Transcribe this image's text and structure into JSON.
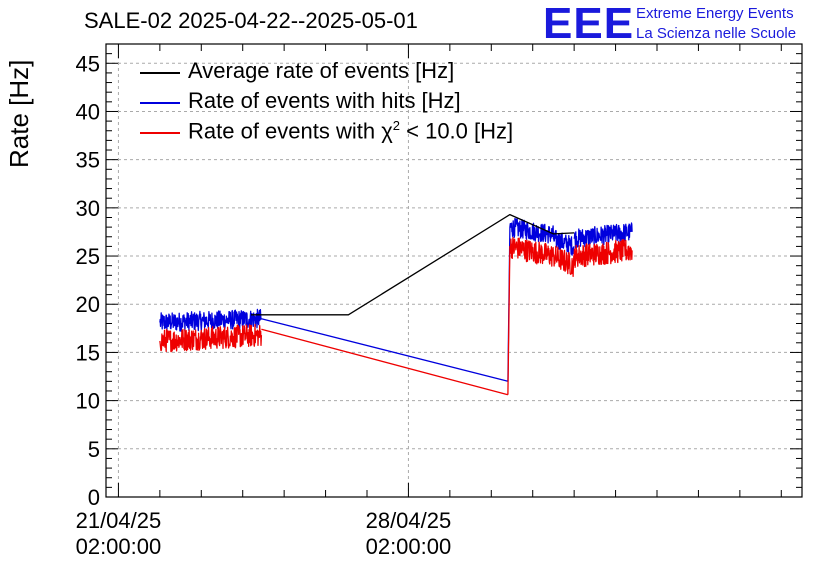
{
  "chart_data": {
    "type": "line",
    "title": "SALE-02 2025-04-22--2025-05-01",
    "ylabel": "Rate [Hz]",
    "xlabel": "",
    "ylim": [
      0,
      47
    ],
    "yticks": [
      0,
      5,
      10,
      15,
      20,
      25,
      30,
      35,
      40,
      45
    ],
    "xlim_days": [
      -0.3,
      16.5
    ],
    "xticks": [
      {
        "date": "21/04/25",
        "time": "02:00:00",
        "day": 0
      },
      {
        "date": "28/04/25",
        "time": "02:00:00",
        "day": 7
      }
    ],
    "grid": true,
    "legend_position": "top-left",
    "series": [
      {
        "name": "Average rate of events [Hz]",
        "color": "#000000",
        "points": [
          [
            3.2,
            18.9
          ],
          [
            5.55,
            18.9
          ],
          [
            9.45,
            29.3
          ],
          [
            10.5,
            27.3
          ],
          [
            11.0,
            27.4
          ]
        ]
      },
      {
        "name": "Rate of events with hits [Hz]",
        "color": "#0000dd",
        "noise": 1.0,
        "segments": [
          {
            "points": [
              [
                1.0,
                18.1
              ],
              [
                3.45,
                18.5
              ]
            ]
          },
          {
            "points": [
              [
                3.45,
                18.5
              ],
              [
                9.4,
                12.0
              ]
            ],
            "smooth": true
          },
          {
            "points": [
              [
                9.4,
                12.0
              ],
              [
                9.45,
                28.0
              ],
              [
                10.5,
                27.2
              ],
              [
                10.5,
                26.8
              ],
              [
                11.0,
                26.0
              ]
            ]
          },
          {
            "points": [
              [
                11.0,
                26.8
              ],
              [
                12.4,
                27.5
              ]
            ]
          }
        ]
      },
      {
        "name": "Rate of events with χ² < 10.0 [Hz]",
        "color": "#ee0000",
        "noise": 1.2,
        "segments": [
          {
            "points": [
              [
                1.0,
                16.2
              ],
              [
                3.45,
                16.8
              ]
            ]
          },
          {
            "points": [
              [
                3.45,
                17.4
              ],
              [
                9.4,
                10.6
              ]
            ],
            "smooth": true
          },
          {
            "points": [
              [
                9.4,
                10.6
              ],
              [
                9.45,
                26.0
              ],
              [
                10.5,
                25.0
              ],
              [
                10.5,
                25.0
              ],
              [
                11.0,
                24.0
              ]
            ]
          },
          {
            "points": [
              [
                11.0,
                25.0
              ],
              [
                12.4,
                25.6
              ]
            ]
          }
        ]
      }
    ]
  },
  "logo": {
    "text": "EEE",
    "line1": "Extreme Energy Events",
    "line2": "La Scienza nelle Scuole"
  },
  "legend_labels": {
    "avg": "Average rate of events [Hz]",
    "hits": "Rate of events with hits [Hz]",
    "chi_prefix": "Rate of events with ",
    "chi_symbol": "χ",
    "chi_sup": "2",
    "chi_suffix": " < 10.0 [Hz]"
  }
}
